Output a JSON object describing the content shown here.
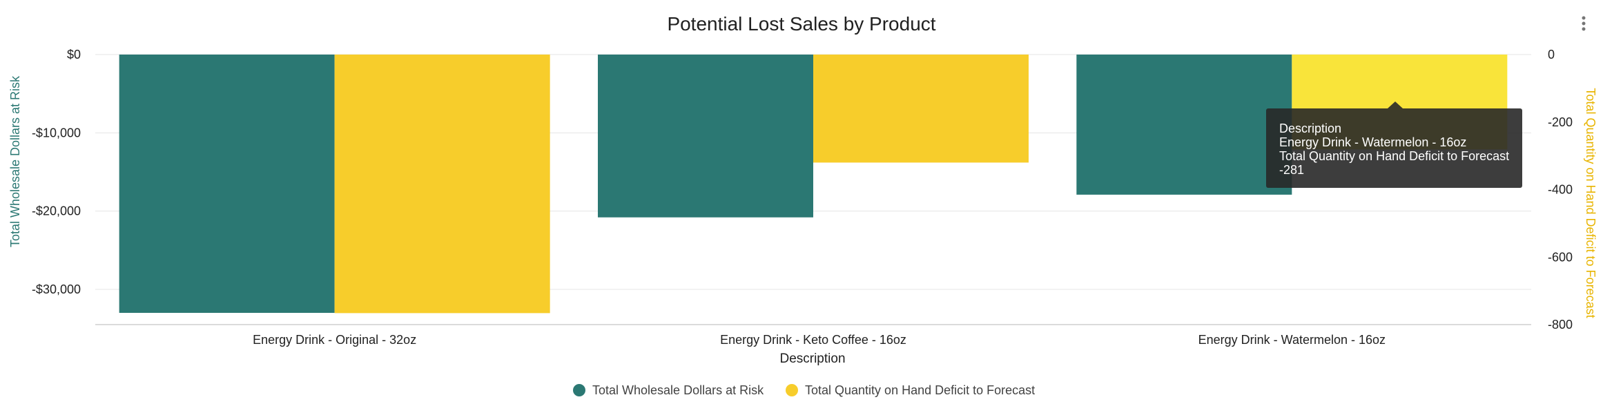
{
  "chart_data": {
    "type": "bar",
    "title": "Potential Lost Sales by Product",
    "xlabel": "Description",
    "categories": [
      "Energy Drink - Original - 32oz",
      "Energy Drink - Keto Coffee - 16oz",
      "Energy Drink - Watermelon - 16oz"
    ],
    "y_left": {
      "label": "Total Wholesale Dollars at Risk",
      "range": [
        -34500,
        0
      ],
      "ticks": [
        0,
        -10000,
        -20000,
        -30000
      ],
      "tick_labels": [
        "$0",
        "-$10,000",
        "-$20,000",
        "-$30,000"
      ]
    },
    "y_right": {
      "label": "Total Quantity on Hand Deficit to Forecast",
      "range": [
        -800,
        0
      ],
      "ticks": [
        0,
        -200,
        -400,
        -600,
        -800
      ],
      "tick_labels": [
        "0",
        "-200",
        "-400",
        "-600",
        "-800"
      ]
    },
    "series": [
      {
        "name": "Total Wholesale Dollars at Risk",
        "axis": "left",
        "color": "#2b7873",
        "values": [
          -33000,
          -20800,
          -17900
        ]
      },
      {
        "name": "Total Quantity on Hand Deficit to Forecast",
        "axis": "right",
        "color": "#f7cd2b",
        "values": [
          -766,
          -320,
          -281
        ]
      }
    ],
    "grid": true,
    "legend": "bottom-center",
    "highlight_color": "#f9e43a"
  },
  "tooltip": {
    "line1": "Description",
    "line2": "Energy Drink - Watermelon - 16oz",
    "line3": "Total Quantity on Hand Deficit to Forecast",
    "line4": "-281"
  }
}
